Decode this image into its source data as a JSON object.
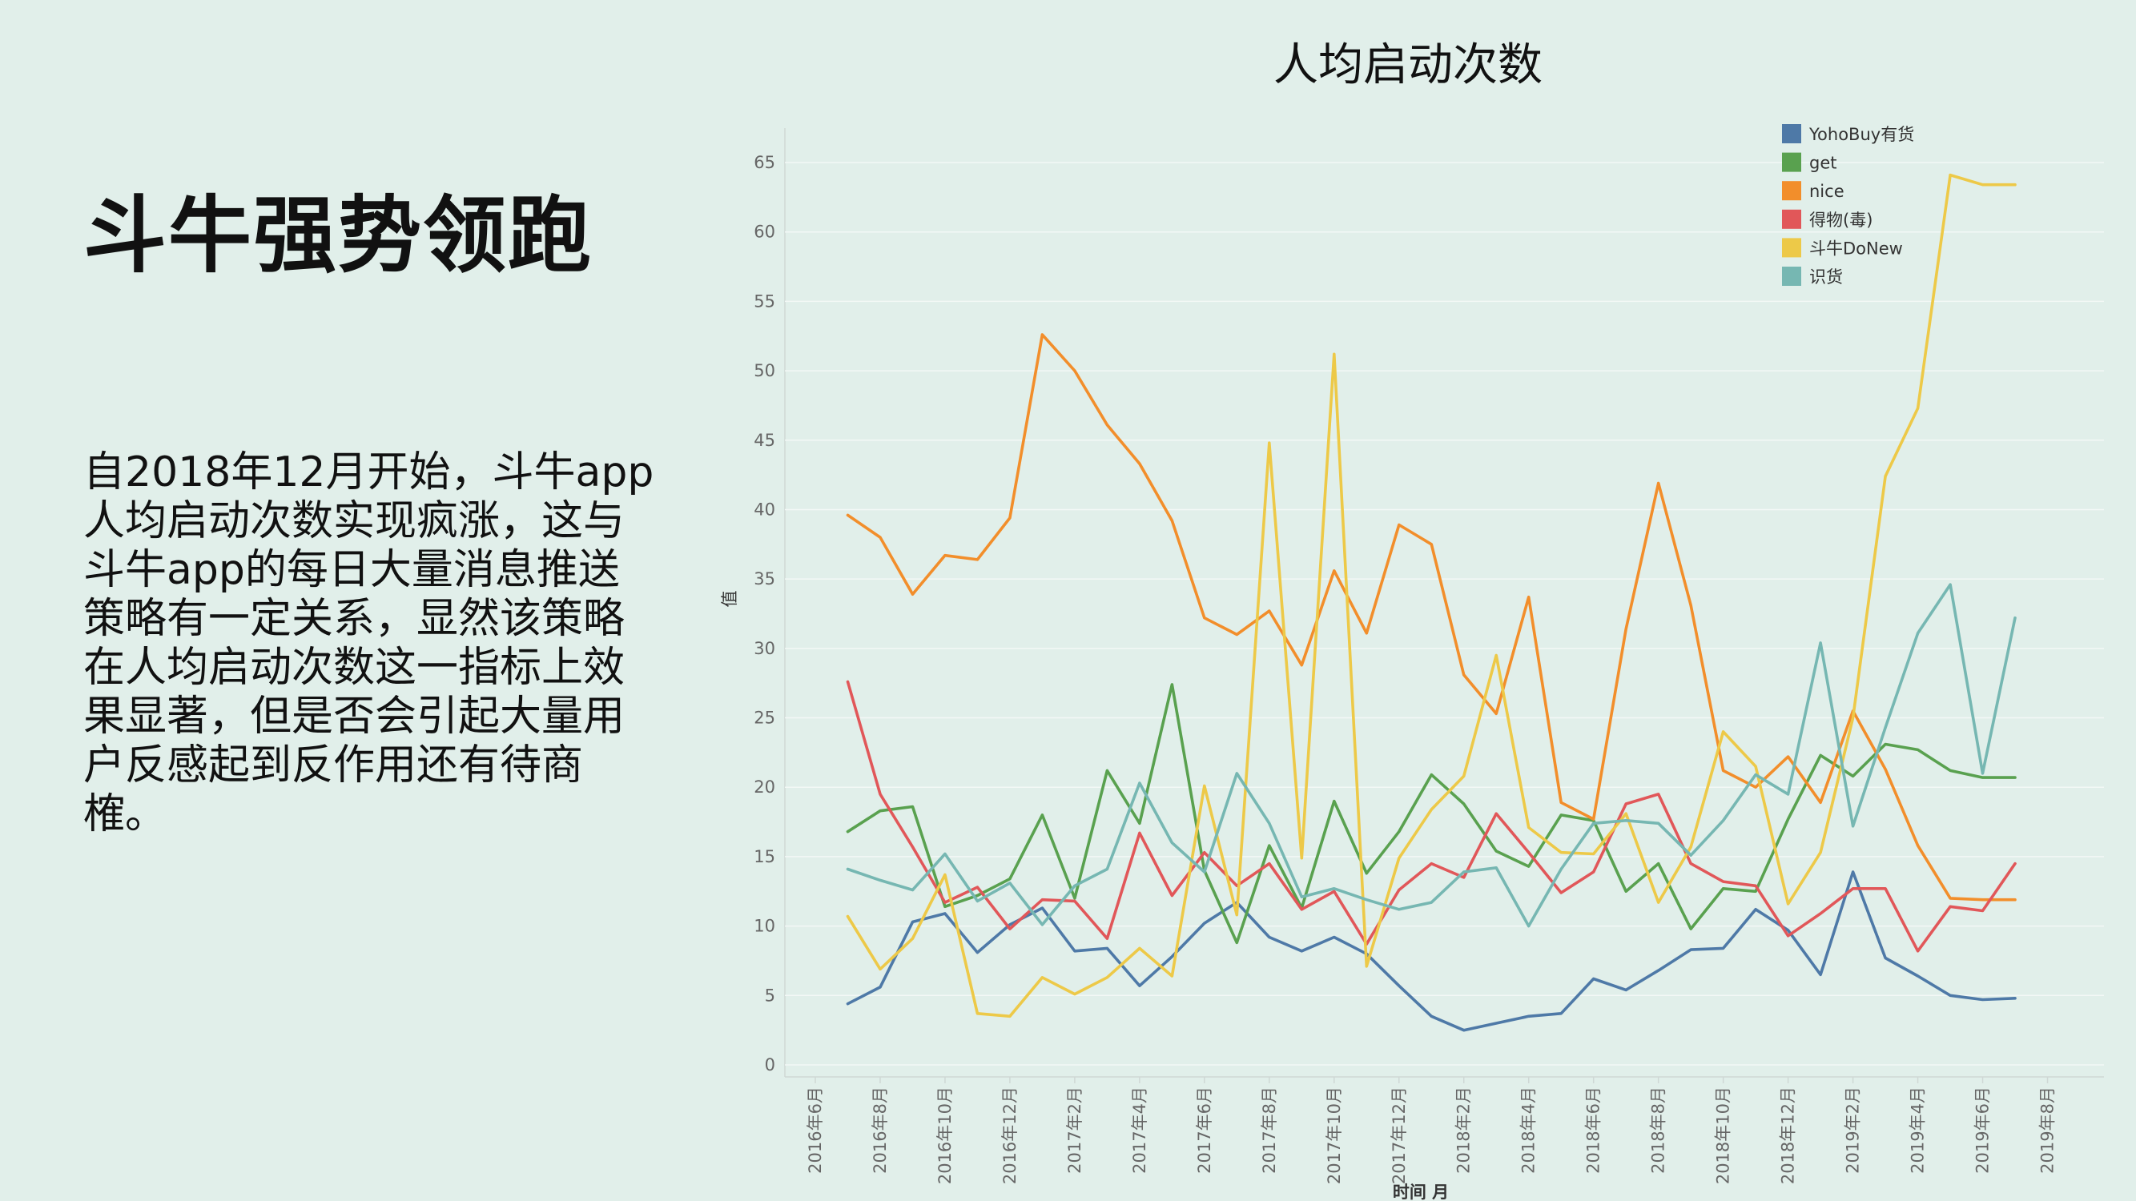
{
  "slide": {
    "headline": "斗牛强势领跑",
    "paragraph": "自2018年12月开始，斗牛app人均启动次数实现疯涨，这与斗牛app的每日大量消息推送策略有一定关系，显然该策略在人均启动次数这一指标上效果显著，但是否会引起大量用户反感起到反作用还有待商榷。"
  },
  "chart_data": {
    "type": "line",
    "title": "人均启动次数",
    "xlabel": "时间 月",
    "ylabel": "值",
    "ylim": [
      0,
      65
    ],
    "yticks": [
      0,
      5,
      10,
      15,
      20,
      25,
      30,
      35,
      40,
      45,
      50,
      55,
      60,
      65
    ],
    "x_tick_labels": [
      "2016年6月",
      "2016年8月",
      "2016年10月",
      "2016年12月",
      "2017年2月",
      "2017年4月",
      "2017年6月",
      "2017年8月",
      "2017年10月",
      "2017年12月",
      "2018年2月",
      "2018年4月",
      "2018年6月",
      "2018年8月",
      "2018年10月",
      "2018年12月",
      "2019年2月",
      "2019年4月",
      "2019年6月",
      "2019年8月"
    ],
    "x": [
      "2016年7月",
      "2016年8月",
      "2016年9月",
      "2016年10月",
      "2016年11月",
      "2016年12月",
      "2017年1月",
      "2017年2月",
      "2017年3月",
      "2017年4月",
      "2017年5月",
      "2017年6月",
      "2017年7月",
      "2017年8月",
      "2017年9月",
      "2017年10月",
      "2017年11月",
      "2017年12月",
      "2018年1月",
      "2018年2月",
      "2018年3月",
      "2018年4月",
      "2018年5月",
      "2018年6月",
      "2018年7月",
      "2018年8月",
      "2018年9月",
      "2018年10月",
      "2018年11月",
      "2018年12月",
      "2019年1月",
      "2019年2月",
      "2019年3月",
      "2019年4月",
      "2019年5月",
      "2019年6月",
      "2019年7月"
    ],
    "grid": true,
    "legend_position": "top-right",
    "series": [
      {
        "name": "YohoBuy有货",
        "color": "#4e79a7",
        "values": [
          4.4,
          5.6,
          10.3,
          10.9,
          8.1,
          10.1,
          11.3,
          8.2,
          8.4,
          5.7,
          7.8,
          10.2,
          11.7,
          9.2,
          8.2,
          9.2,
          8.0,
          5.7,
          3.5,
          2.5,
          3.0,
          3.5,
          3.7,
          6.2,
          5.4,
          6.8,
          8.3,
          8.4,
          11.2,
          9.7,
          6.5,
          13.9,
          7.7,
          6.4,
          5.0,
          4.7,
          4.8
        ]
      },
      {
        "name": "get",
        "color": "#59a14f",
        "values": [
          16.8,
          18.3,
          18.6,
          11.4,
          12.2,
          13.4,
          18.0,
          12.0,
          21.2,
          17.4,
          27.4,
          14.0,
          8.8,
          15.8,
          11.3,
          19.0,
          13.8,
          16.8,
          20.9,
          18.8,
          15.4,
          14.3,
          18.0,
          17.6,
          12.5,
          14.5,
          9.8,
          12.7,
          12.5,
          17.7,
          22.3,
          20.8,
          23.1,
          22.7,
          21.2,
          20.7,
          20.7
        ]
      },
      {
        "name": "nice",
        "color": "#f28e2b",
        "values": [
          39.6,
          38.0,
          33.9,
          36.7,
          36.4,
          39.4,
          52.6,
          50.0,
          46.1,
          43.3,
          39.2,
          32.2,
          31.0,
          32.7,
          28.8,
          35.6,
          31.1,
          38.9,
          37.5,
          28.1,
          25.3,
          33.7,
          18.9,
          17.7,
          31.4,
          41.9,
          33.1,
          21.2,
          20.0,
          22.2,
          18.9,
          25.5,
          21.3,
          15.8,
          12.0,
          11.9,
          11.9
        ]
      },
      {
        "name": "得物(毒)",
        "color": "#e15759",
        "values": [
          27.6,
          19.5,
          15.7,
          11.7,
          12.8,
          9.8,
          11.9,
          11.8,
          9.1,
          16.7,
          12.2,
          15.3,
          12.9,
          14.5,
          11.2,
          12.5,
          8.7,
          12.6,
          14.5,
          13.5,
          18.1,
          15.3,
          12.4,
          13.9,
          18.8,
          19.5,
          14.5,
          13.2,
          12.9,
          9.3,
          10.9,
          12.7,
          12.7,
          8.2,
          11.4,
          11.1,
          14.5
        ]
      },
      {
        "name": "斗牛DoNew",
        "color": "#edc948",
        "values": [
          10.7,
          6.9,
          9.1,
          13.7,
          3.7,
          3.5,
          6.3,
          5.1,
          6.3,
          8.4,
          6.4,
          20.1,
          10.8,
          44.8,
          14.9,
          51.2,
          7.1,
          14.9,
          18.4,
          20.8,
          29.5,
          17.1,
          15.3,
          15.2,
          18.1,
          11.7,
          15.7,
          24.0,
          21.5,
          11.6,
          15.3,
          25.0,
          42.4,
          47.3,
          64.1,
          63.4,
          63.4
        ]
      },
      {
        "name": "识货",
        "color": "#76b7b2",
        "values": [
          14.1,
          13.3,
          12.6,
          15.2,
          11.8,
          13.1,
          10.1,
          12.9,
          14.1,
          20.3,
          16.0,
          13.9,
          21.0,
          17.4,
          12.1,
          12.7,
          11.9,
          11.2,
          11.7,
          13.9,
          14.2,
          10.0,
          14.1,
          17.4,
          17.6,
          17.4,
          15.1,
          17.6,
          20.9,
          19.5,
          30.4,
          17.2,
          24.3,
          31.1,
          34.6,
          21.0,
          32.2
        ]
      }
    ]
  }
}
